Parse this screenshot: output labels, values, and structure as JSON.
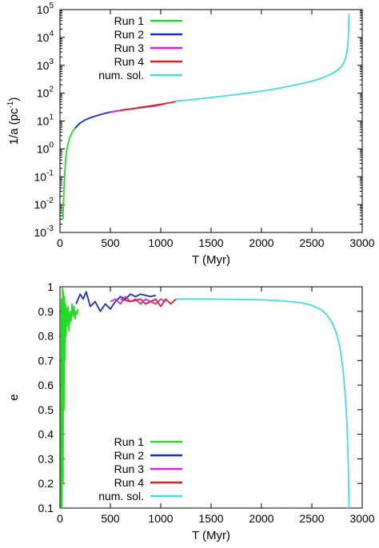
{
  "chart_data": [
    {
      "type": "line",
      "xlabel": "T (Myr)",
      "ylabel_main": "1/a (pc",
      "ylabel_sup": "-1",
      "ylabel_close": ")",
      "xlim": [
        0,
        3000
      ],
      "ylim": [
        0.001,
        100000
      ],
      "yscale": "log",
      "x_ticks": [
        0,
        500,
        1000,
        1500,
        2000,
        2500,
        3000
      ],
      "x_tick_labels": [
        "0",
        "500",
        "1000",
        "1500",
        "2000",
        "2500",
        "3000"
      ],
      "y_ticks": [
        0.001,
        0.01,
        0.1,
        1,
        10,
        100,
        1000,
        10000,
        100000
      ],
      "y_tick_base": "10",
      "y_tick_exps": [
        "-3",
        "-2",
        "-1",
        "0",
        "1",
        "2",
        "3",
        "4",
        "5"
      ],
      "legend_position": "top-left",
      "series": [
        {
          "name": "Run 1",
          "color": "#22dd22",
          "x": [
            30,
            35,
            40,
            45,
            50,
            55,
            60,
            70,
            80,
            90,
            100,
            110,
            120,
            130,
            140,
            150,
            160,
            170,
            180,
            190,
            200
          ],
          "y": [
            0.003,
            0.012,
            0.04,
            0.09,
            0.18,
            0.35,
            0.6,
            1.0,
            1.5,
            2.0,
            2.7,
            3.2,
            3.9,
            4.4,
            5.0,
            5.5,
            6.1,
            6.8,
            7.3,
            8.0,
            8.8
          ]
        },
        {
          "name": "Run 2",
          "color": "#1a2ed1",
          "x": [
            150,
            200,
            250,
            300,
            350,
            400,
            450,
            500,
            550,
            600,
            650,
            700,
            750,
            800,
            850,
            900,
            950
          ],
          "y": [
            5.5,
            8.5,
            11,
            13,
            15,
            17,
            19,
            21,
            22.5,
            24,
            26,
            27,
            28.5,
            30,
            32,
            33,
            35
          ]
        },
        {
          "name": "Run 3",
          "color": "#dd22dd",
          "x": [
            500,
            600,
            700,
            800,
            900,
            1000,
            1050
          ],
          "y": [
            21,
            24,
            27,
            31,
            34,
            38,
            42
          ]
        },
        {
          "name": "Run 4",
          "color": "#dd2222",
          "x": [
            600,
            700,
            800,
            900,
            1000,
            1100,
            1150
          ],
          "y": [
            24,
            27,
            31,
            35,
            40,
            46,
            50
          ]
        },
        {
          "name": "num. sol.",
          "color": "#44dddd",
          "x": [
            1150,
            1300,
            1500,
            1700,
            1900,
            2100,
            2300,
            2500,
            2600,
            2700,
            2750,
            2800,
            2820,
            2840,
            2850,
            2860,
            2865,
            2870
          ],
          "y": [
            52,
            58,
            70,
            85,
            105,
            135,
            185,
            270,
            350,
            500,
            650,
            950,
            1300,
            2100,
            3200,
            8000,
            20000,
            70000
          ]
        }
      ]
    },
    {
      "type": "line",
      "xlabel": "T (Myr)",
      "ylabel": "e",
      "xlim": [
        0,
        3000
      ],
      "ylim": [
        0.1,
        1
      ],
      "x_ticks": [
        0,
        500,
        1000,
        1500,
        2000,
        2500,
        3000
      ],
      "x_tick_labels": [
        "0",
        "500",
        "1000",
        "1500",
        "2000",
        "2500",
        "3000"
      ],
      "y_ticks": [
        0.1,
        0.2,
        0.3,
        0.4,
        0.5,
        0.6,
        0.7,
        0.8,
        0.9,
        1
      ],
      "y_tick_labels": [
        "0.1",
        "0.2",
        "0.3",
        "0.4",
        "0.5",
        "0.6",
        "0.7",
        "0.8",
        "0.9",
        "1"
      ],
      "legend_position": "bottom-left",
      "series": [
        {
          "name": "Run 1",
          "color": "#22dd22",
          "x": [
            10,
            15,
            20,
            25,
            30,
            35,
            40,
            45,
            50,
            55,
            60,
            65,
            70,
            80,
            90,
            100,
            110,
            120,
            130,
            140,
            150,
            160,
            170,
            180
          ],
          "y": [
            0.1,
            0.95,
            0.1,
            1.0,
            0.2,
            0.98,
            0.5,
            0.96,
            0.7,
            0.93,
            0.8,
            0.91,
            0.84,
            0.92,
            0.82,
            0.9,
            0.86,
            0.93,
            0.88,
            0.92,
            0.87,
            0.9,
            0.89,
            0.91
          ]
        },
        {
          "name": "Run 2",
          "color": "#1a2ed1",
          "x": [
            160,
            200,
            230,
            260,
            300,
            350,
            400,
            450,
            500,
            550,
            600,
            650,
            700,
            750,
            800,
            850,
            900,
            950
          ],
          "y": [
            0.93,
            0.97,
            0.95,
            0.98,
            0.92,
            0.94,
            0.9,
            0.93,
            0.91,
            0.94,
            0.96,
            0.95,
            0.97,
            0.96,
            0.97,
            0.965,
            0.96,
            0.965
          ]
        },
        {
          "name": "Run 3",
          "color": "#dd22dd",
          "x": [
            500,
            550,
            600,
            650,
            700,
            750,
            800,
            850,
            900,
            950,
            1000,
            1050
          ],
          "y": [
            0.94,
            0.95,
            0.93,
            0.96,
            0.94,
            0.95,
            0.93,
            0.95,
            0.94,
            0.93,
            0.95,
            0.94
          ]
        },
        {
          "name": "Run 4",
          "color": "#dd2222",
          "x": [
            600,
            700,
            800,
            850,
            900,
            950,
            1000,
            1050,
            1100,
            1150
          ],
          "y": [
            0.95,
            0.94,
            0.95,
            0.93,
            0.94,
            0.95,
            0.92,
            0.95,
            0.93,
            0.95
          ]
        },
        {
          "name": "num. sol.",
          "color": "#44dddd",
          "x": [
            1150,
            1500,
            2000,
            2200,
            2400,
            2500,
            2600,
            2650,
            2700,
            2750,
            2780,
            2810,
            2830,
            2845,
            2855,
            2862,
            2866,
            2870
          ],
          "y": [
            0.95,
            0.95,
            0.947,
            0.943,
            0.935,
            0.925,
            0.905,
            0.885,
            0.855,
            0.805,
            0.75,
            0.66,
            0.57,
            0.47,
            0.37,
            0.27,
            0.18,
            0.1
          ]
        }
      ]
    }
  ]
}
